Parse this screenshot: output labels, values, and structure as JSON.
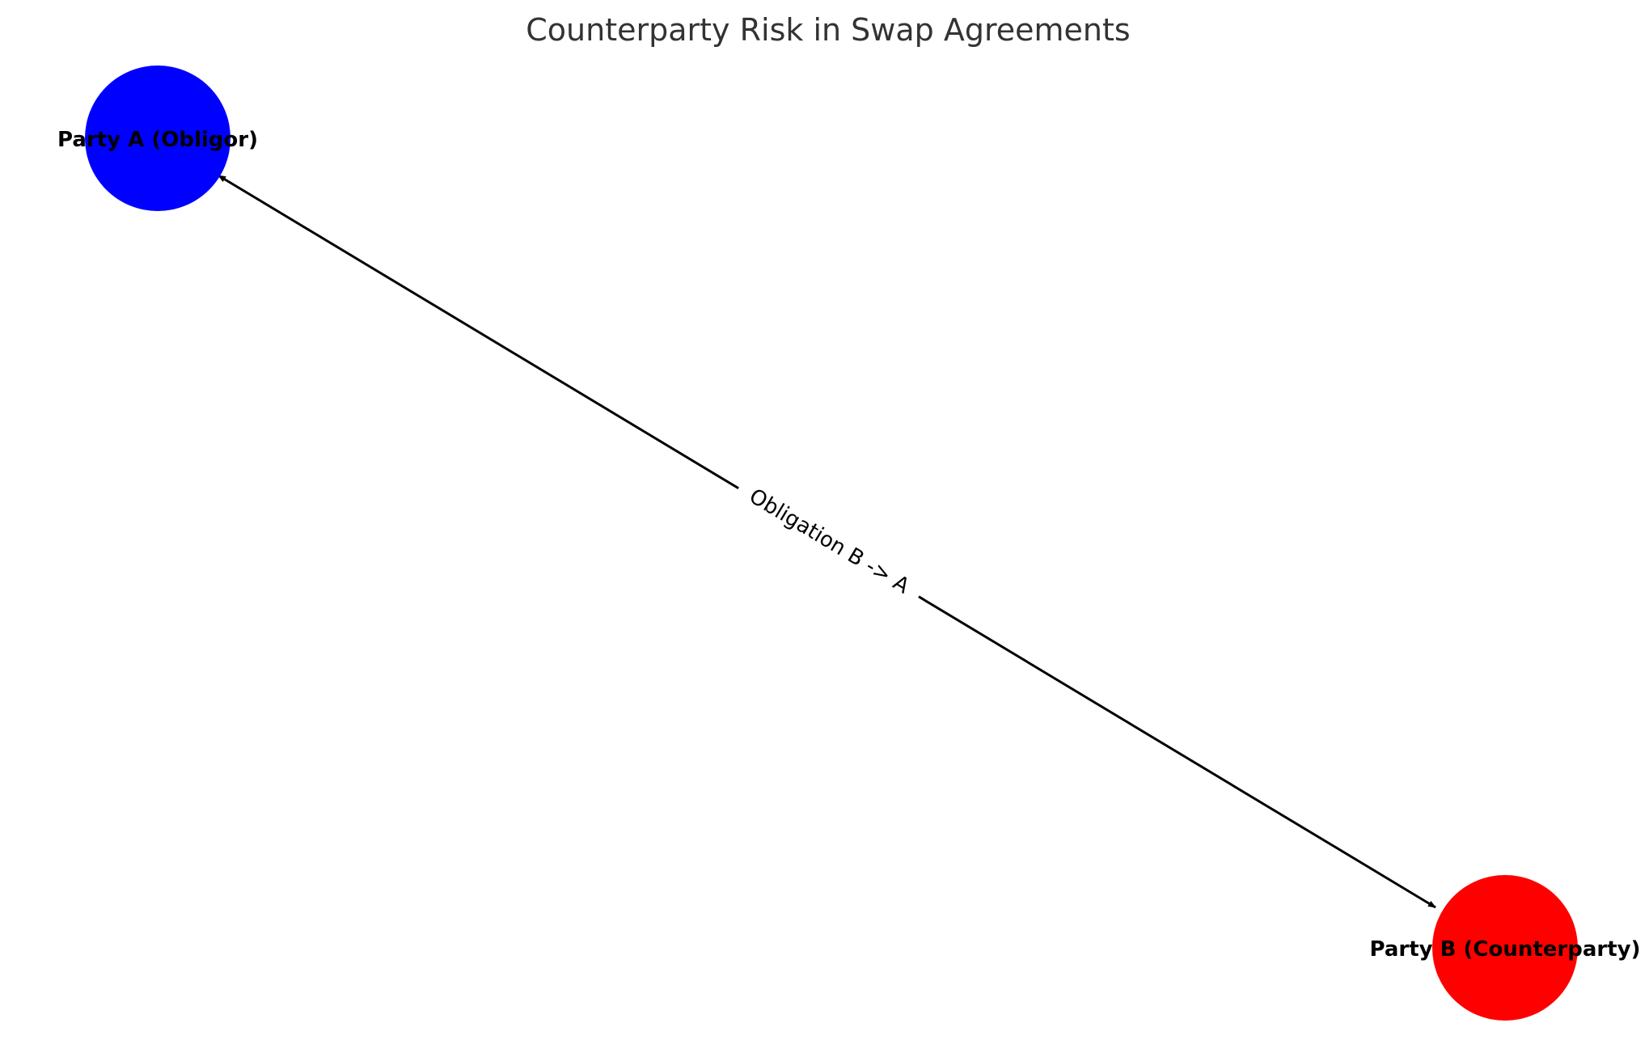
{
  "diagram": {
    "title": "Counterparty Risk in Swap Agreements",
    "nodes": [
      {
        "id": "A",
        "label": "Party A (Obligor)",
        "color": "#0000ff"
      },
      {
        "id": "B",
        "label": "Party B (Counterparty)",
        "color": "#ff0000"
      }
    ],
    "edges": [
      {
        "from": "B",
        "to": "A",
        "label": "Obligation B -> A",
        "bidirectional_arrows": true
      }
    ]
  }
}
